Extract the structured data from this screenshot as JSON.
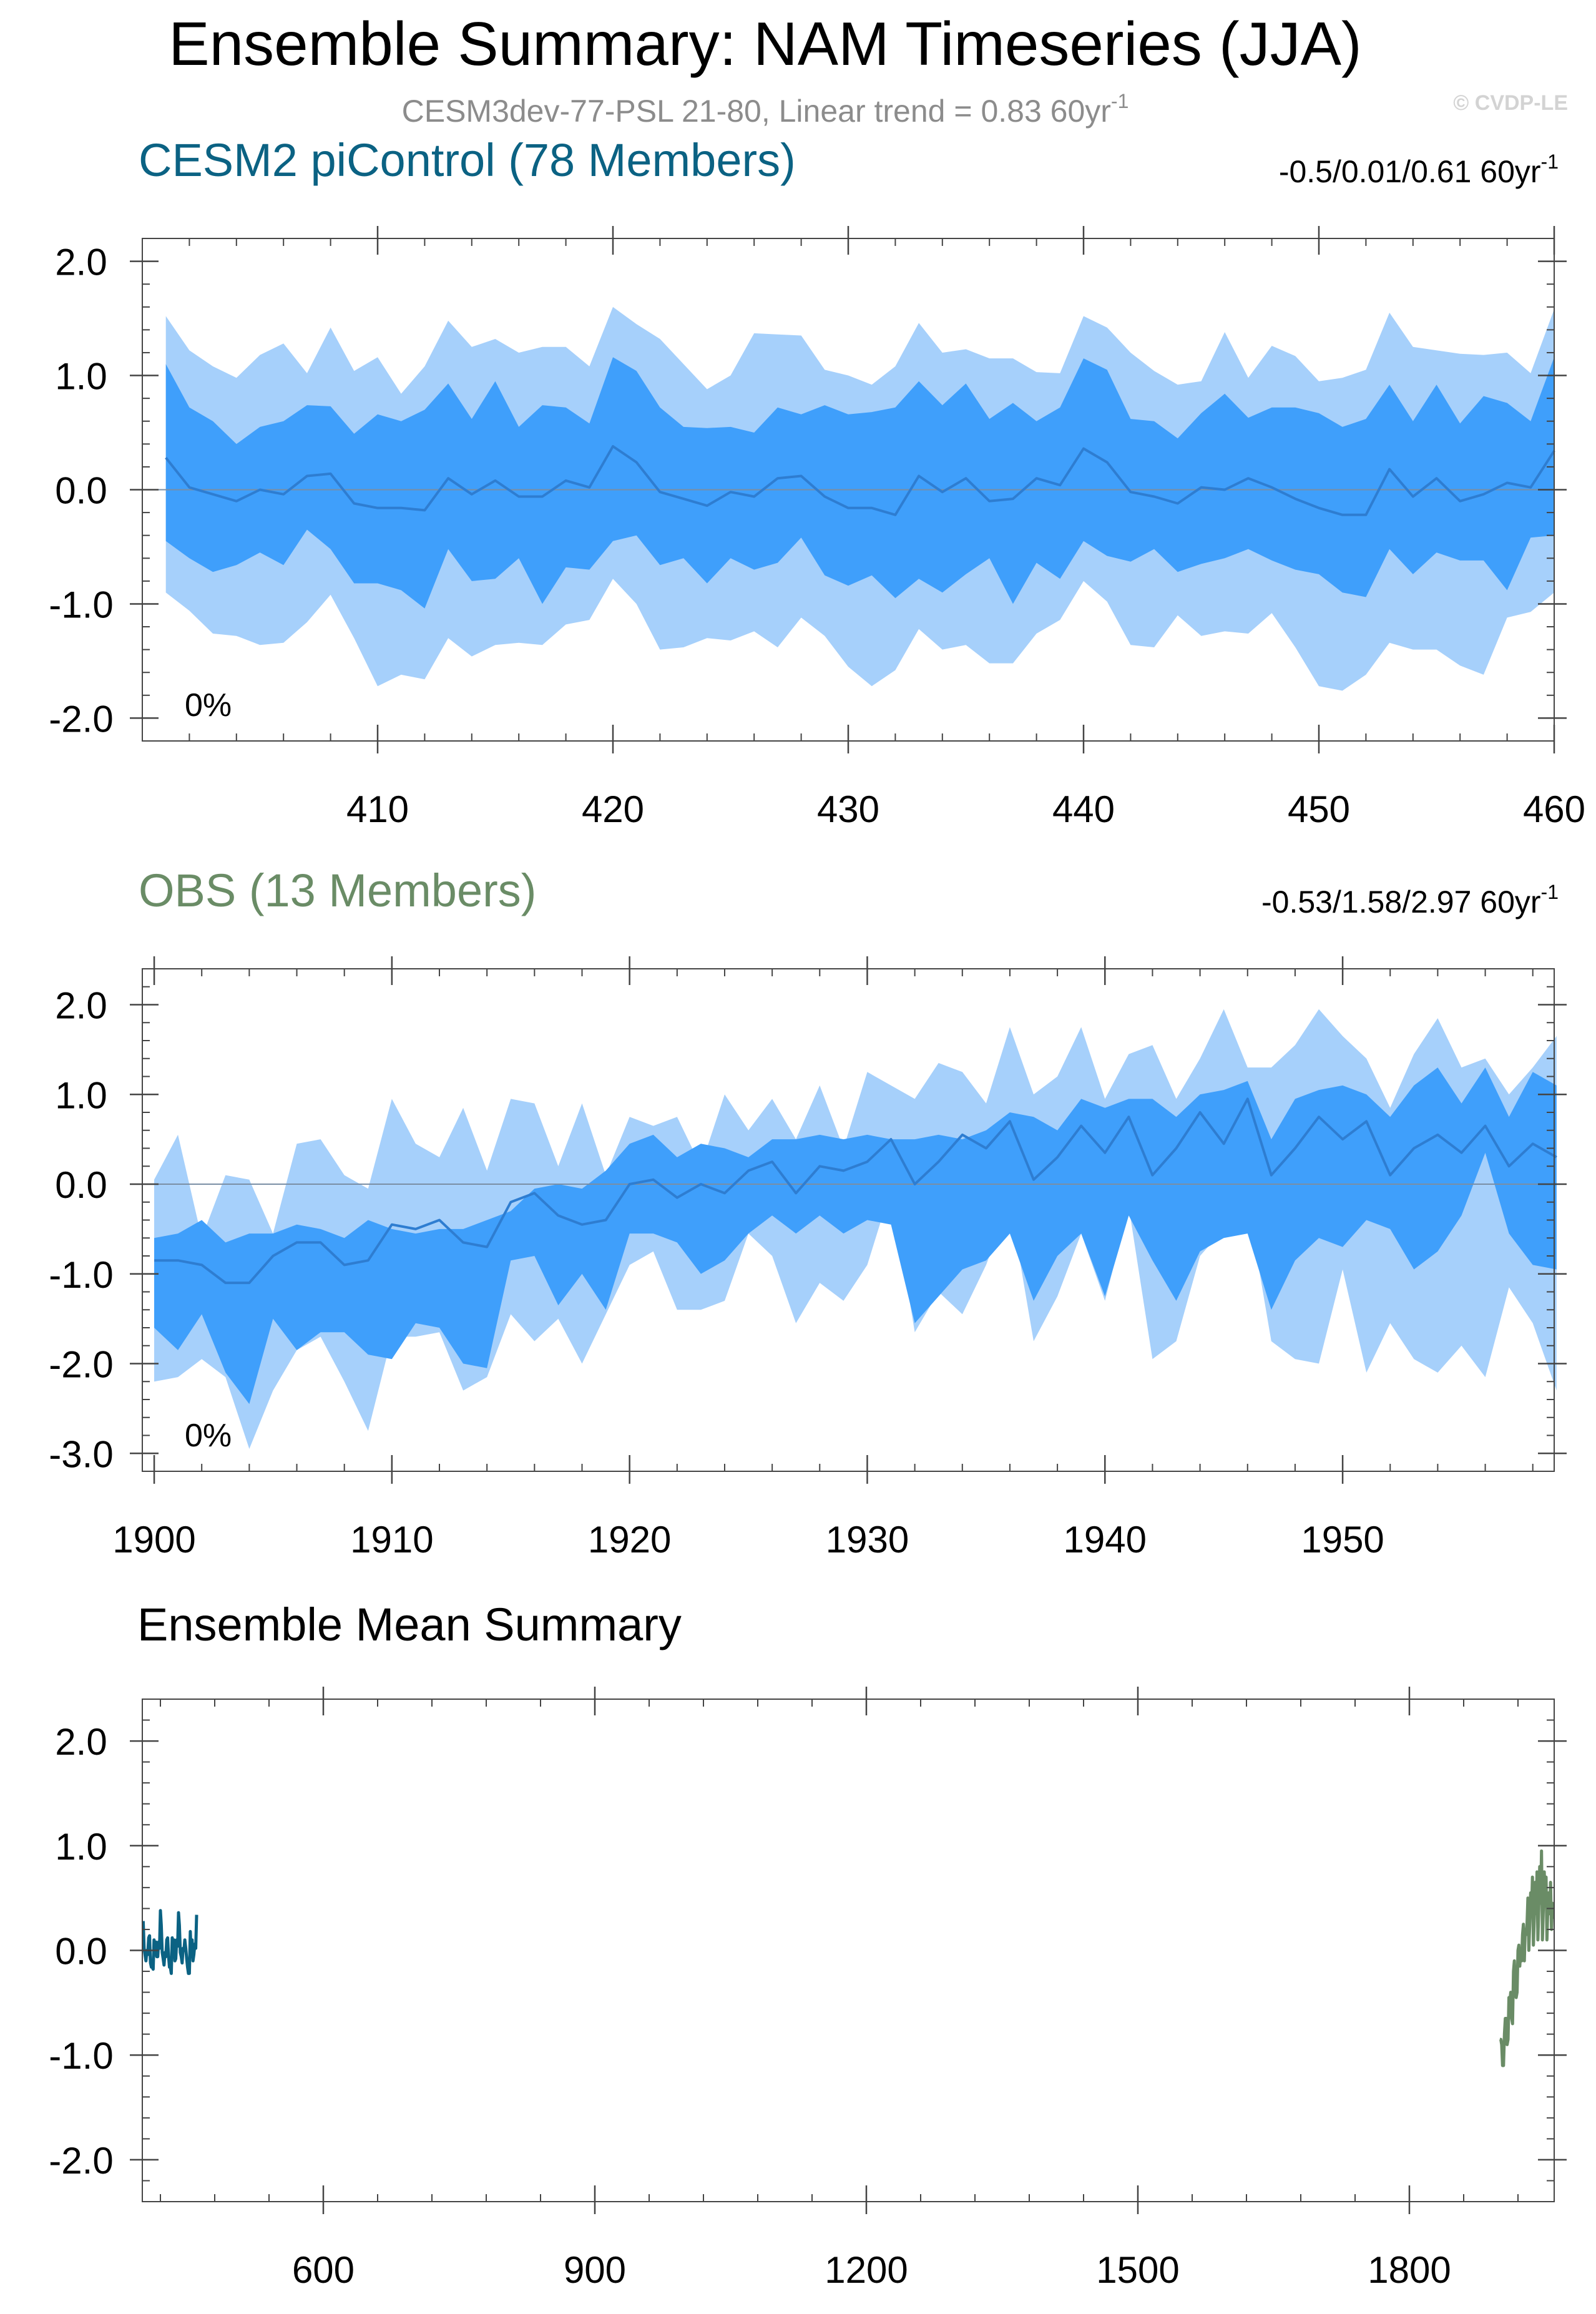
{
  "figure": {
    "title": "Ensemble Summary: NAM Timeseries (JJA)",
    "subtitle": "CESM3dev-77-PSL 21-80, Linear trend = 0.83 60yr",
    "subtitle_exp": "-1",
    "watermark": "© CVDP-LE"
  },
  "colors": {
    "outer_band": "#a6d0fb",
    "inner_band": "#3f9ffb",
    "mean_line": "#2e7dd1",
    "cesm2_label": "#0b6283",
    "obs_label": "#6a8c66",
    "cesm2_line": "#0b6283",
    "obs_line": "#6a8c66",
    "axis": "#444444",
    "zero_line": "#7a8ea4"
  },
  "chart_data": [
    {
      "type": "area",
      "panel": "CESM2 piControl",
      "title_left": "CESM2 piControl (78 Members)",
      "title_right": "-0.5/0.01/0.61 60yr",
      "title_right_exp": "-1",
      "annotation": "0%",
      "xlim": [
        400,
        460
      ],
      "ylim": [
        -2.2,
        2.2
      ],
      "x_ticks": [
        410,
        420,
        430,
        440,
        450,
        460
      ],
      "y_ticks": [
        2.0,
        1.0,
        0.0,
        -1.0,
        -2.0
      ],
      "y_tick_labels": [
        "2.0",
        "1.0",
        "0.0",
        "-1.0",
        "-2.0"
      ],
      "x": [
        401,
        402,
        403,
        404,
        405,
        406,
        407,
        408,
        409,
        410,
        411,
        412,
        413,
        414,
        415,
        416,
        417,
        418,
        419,
        420,
        421,
        422,
        423,
        424,
        425,
        426,
        427,
        428,
        429,
        430,
        431,
        432,
        433,
        434,
        435,
        436,
        437,
        438,
        439,
        440,
        441,
        442,
        443,
        444,
        445,
        446,
        447,
        448,
        449,
        450,
        451,
        452,
        453,
        454,
        455,
        456,
        457,
        458,
        459,
        460
      ],
      "series": [
        {
          "name": "max",
          "values": [
            1.52,
            1.22,
            1.08,
            0.98,
            1.18,
            1.28,
            1.02,
            1.42,
            1.04,
            1.16,
            0.84,
            1.08,
            1.48,
            1.25,
            1.32,
            1.2,
            1.25,
            1.25,
            1.08,
            1.6,
            1.45,
            1.32,
            1.1,
            0.88,
            1.0,
            1.37,
            1.36,
            1.35,
            1.05,
            1.0,
            0.92,
            1.08,
            1.46,
            1.2,
            1.23,
            1.15,
            1.15,
            1.03,
            1.02,
            1.52,
            1.42,
            1.2,
            1.04,
            0.92,
            0.95,
            1.38,
            0.98,
            1.26,
            1.17,
            0.95,
            0.98,
            1.05,
            1.55,
            1.25,
            1.22,
            1.19,
            1.18,
            1.2,
            1.02,
            1.58
          ]
        },
        {
          "name": "p90",
          "values": [
            1.1,
            0.72,
            0.6,
            0.4,
            0.55,
            0.6,
            0.74,
            0.73,
            0.49,
            0.66,
            0.6,
            0.7,
            0.93,
            0.62,
            0.95,
            0.55,
            0.74,
            0.72,
            0.58,
            1.16,
            1.04,
            0.72,
            0.55,
            0.54,
            0.55,
            0.5,
            0.72,
            0.66,
            0.74,
            0.66,
            0.68,
            0.72,
            0.95,
            0.74,
            0.93,
            0.62,
            0.76,
            0.6,
            0.72,
            1.15,
            1.05,
            0.62,
            0.6,
            0.45,
            0.67,
            0.84,
            0.63,
            0.72,
            0.72,
            0.67,
            0.55,
            0.62,
            0.92,
            0.6,
            0.92,
            0.58,
            0.82,
            0.76,
            0.6,
            1.16
          ]
        },
        {
          "name": "mean",
          "values": [
            0.28,
            0.02,
            -0.04,
            -0.1,
            0.0,
            -0.04,
            0.12,
            0.14,
            -0.12,
            -0.16,
            -0.16,
            -0.18,
            0.1,
            -0.04,
            0.08,
            -0.06,
            -0.06,
            0.08,
            0.02,
            0.38,
            0.24,
            -0.02,
            -0.08,
            -0.14,
            -0.02,
            -0.06,
            0.1,
            0.12,
            -0.06,
            -0.16,
            -0.16,
            -0.22,
            0.12,
            -0.02,
            0.1,
            -0.1,
            -0.08,
            0.1,
            0.04,
            0.36,
            0.24,
            -0.02,
            -0.06,
            -0.12,
            0.02,
            0.0,
            0.1,
            0.02,
            -0.08,
            -0.16,
            -0.22,
            -0.22,
            0.18,
            -0.06,
            0.1,
            -0.1,
            -0.04,
            0.06,
            0.02,
            0.34
          ]
        },
        {
          "name": "p10",
          "values": [
            -0.45,
            -0.6,
            -0.72,
            -0.66,
            -0.55,
            -0.66,
            -0.35,
            -0.52,
            -0.82,
            -0.82,
            -0.88,
            -1.04,
            -0.52,
            -0.8,
            -0.78,
            -0.6,
            -1.0,
            -0.68,
            -0.7,
            -0.45,
            -0.4,
            -0.66,
            -0.6,
            -0.82,
            -0.6,
            -0.7,
            -0.64,
            -0.42,
            -0.75,
            -0.84,
            -0.75,
            -0.95,
            -0.78,
            -0.9,
            -0.74,
            -0.6,
            -1.0,
            -0.64,
            -0.78,
            -0.45,
            -0.58,
            -0.63,
            -0.52,
            -0.72,
            -0.65,
            -0.6,
            -0.52,
            -0.62,
            -0.7,
            -0.74,
            -0.9,
            -0.94,
            -0.52,
            -0.74,
            -0.55,
            -0.62,
            -0.62,
            -0.88,
            -0.42,
            -0.4
          ]
        },
        {
          "name": "min",
          "values": [
            -0.9,
            -1.06,
            -1.26,
            -1.28,
            -1.36,
            -1.34,
            -1.16,
            -0.92,
            -1.3,
            -1.72,
            -1.62,
            -1.66,
            -1.3,
            -1.46,
            -1.36,
            -1.34,
            -1.36,
            -1.18,
            -1.14,
            -0.78,
            -1.0,
            -1.4,
            -1.38,
            -1.3,
            -1.32,
            -1.24,
            -1.38,
            -1.12,
            -1.28,
            -1.55,
            -1.72,
            -1.58,
            -1.22,
            -1.4,
            -1.36,
            -1.52,
            -1.52,
            -1.26,
            -1.14,
            -0.8,
            -0.98,
            -1.36,
            -1.38,
            -1.1,
            -1.28,
            -1.24,
            -1.26,
            -1.08,
            -1.38,
            -1.72,
            -1.76,
            -1.62,
            -1.34,
            -1.4,
            -1.4,
            -1.54,
            -1.62,
            -1.12,
            -1.07,
            -0.9
          ]
        }
      ]
    },
    {
      "type": "area",
      "panel": "OBS",
      "title_left": "OBS (13 Members)",
      "title_right": "-0.53/1.58/2.97 60yr",
      "title_right_exp": "-1",
      "annotation": "0%",
      "xlim": [
        1899.5,
        1958.9
      ],
      "ylim": [
        -3.2,
        2.4
      ],
      "x_ticks": [
        1900,
        1910,
        1920,
        1930,
        1940,
        1950
      ],
      "y_ticks": [
        2.0,
        1.0,
        0.0,
        -1.0,
        -2.0,
        -3.0
      ],
      "y_tick_labels": [
        "2.0",
        "1.0",
        "0.0",
        "-1.0",
        "-2.0",
        "-3.0"
      ],
      "x": [
        1900,
        1901,
        1902,
        1903,
        1904,
        1905,
        1906,
        1907,
        1908,
        1909,
        1910,
        1911,
        1912,
        1913,
        1914,
        1915,
        1916,
        1917,
        1918,
        1919,
        1920,
        1921,
        1922,
        1923,
        1924,
        1925,
        1926,
        1927,
        1928,
        1929,
        1930,
        1931,
        1932,
        1933,
        1934,
        1935,
        1936,
        1937,
        1938,
        1939,
        1940,
        1941,
        1942,
        1943,
        1944,
        1945,
        1946,
        1947,
        1948,
        1949,
        1950,
        1951,
        1952,
        1953,
        1954,
        1955,
        1956,
        1957,
        1958,
        1959
      ],
      "series": [
        {
          "name": "max",
          "values": [
            0.05,
            0.55,
            -0.6,
            0.1,
            0.05,
            -0.55,
            0.45,
            0.5,
            0.1,
            -0.05,
            0.95,
            0.45,
            0.3,
            0.85,
            0.15,
            0.95,
            0.9,
            0.2,
            0.9,
            0.1,
            0.75,
            0.65,
            0.75,
            0.2,
            1.0,
            0.6,
            0.95,
            0.5,
            1.1,
            0.4,
            1.25,
            1.1,
            0.95,
            1.35,
            1.25,
            0.9,
            1.75,
            1.0,
            1.2,
            1.75,
            0.95,
            1.45,
            1.55,
            0.95,
            1.4,
            1.95,
            1.3,
            1.3,
            1.55,
            1.95,
            1.65,
            1.4,
            0.85,
            1.45,
            1.85,
            1.3,
            1.4,
            1.0,
            1.3,
            1.65
          ]
        },
        {
          "name": "p90",
          "values": [
            -0.6,
            -0.55,
            -0.4,
            -0.65,
            -0.55,
            -0.55,
            -0.45,
            -0.5,
            -0.6,
            -0.4,
            -0.5,
            -0.55,
            -0.5,
            -0.5,
            -0.4,
            -0.3,
            -0.05,
            0.0,
            -0.05,
            0.15,
            0.45,
            0.55,
            0.3,
            0.45,
            0.4,
            0.3,
            0.5,
            0.5,
            0.55,
            0.5,
            0.55,
            0.5,
            0.5,
            0.55,
            0.5,
            0.6,
            0.8,
            0.75,
            0.6,
            0.95,
            0.85,
            0.95,
            0.95,
            0.75,
            1.0,
            1.05,
            1.15,
            0.5,
            0.95,
            1.05,
            1.1,
            1.0,
            0.75,
            1.1,
            1.3,
            0.9,
            1.3,
            0.75,
            1.25,
            1.1
          ]
        },
        {
          "name": "mean",
          "values": [
            -0.85,
            -0.85,
            -0.9,
            -1.1,
            -1.1,
            -0.8,
            -0.65,
            -0.65,
            -0.9,
            -0.85,
            -0.45,
            -0.5,
            -0.4,
            -0.65,
            -0.7,
            -0.2,
            -0.1,
            -0.35,
            -0.45,
            -0.4,
            0.0,
            0.05,
            -0.15,
            0.0,
            -0.1,
            0.15,
            0.25,
            -0.1,
            0.2,
            0.15,
            0.25,
            0.5,
            0.0,
            0.25,
            0.55,
            0.4,
            0.7,
            0.05,
            0.3,
            0.65,
            0.35,
            0.75,
            0.1,
            0.4,
            0.8,
            0.45,
            0.95,
            0.1,
            0.4,
            0.75,
            0.5,
            0.7,
            0.1,
            0.4,
            0.55,
            0.35,
            0.65,
            0.2,
            0.45,
            0.3
          ]
        },
        {
          "name": "p10",
          "values": [
            -1.6,
            -1.85,
            -1.45,
            -2.1,
            -2.45,
            -1.5,
            -1.85,
            -1.65,
            -1.65,
            -1.9,
            -1.95,
            -1.55,
            -1.6,
            -2.0,
            -2.05,
            -0.85,
            -0.8,
            -1.35,
            -1.0,
            -1.4,
            -0.55,
            -0.55,
            -0.65,
            -1.0,
            -0.85,
            -0.55,
            -0.35,
            -0.55,
            -0.35,
            -0.55,
            -0.4,
            -0.45,
            -1.55,
            -1.25,
            -0.95,
            -0.85,
            -0.55,
            -1.3,
            -0.8,
            -0.55,
            -1.25,
            -0.35,
            -0.85,
            -1.3,
            -0.75,
            -0.6,
            -0.55,
            -1.4,
            -0.85,
            -0.6,
            -0.7,
            -0.4,
            -0.5,
            -0.95,
            -0.75,
            -0.35,
            0.35,
            -0.55,
            -0.9,
            -0.95
          ]
        },
        {
          "name": "min",
          "values": [
            -2.2,
            -2.15,
            -1.95,
            -2.15,
            -2.95,
            -2.3,
            -1.85,
            -1.7,
            -2.2,
            -2.75,
            -1.7,
            -1.7,
            -1.65,
            -2.3,
            -2.15,
            -1.45,
            -1.75,
            -1.5,
            -2.0,
            -1.45,
            -0.9,
            -0.75,
            -1.4,
            -1.4,
            -1.3,
            -0.55,
            -0.8,
            -1.55,
            -1.1,
            -1.3,
            -0.9,
            -0.05,
            -1.65,
            -1.2,
            -1.45,
            -0.9,
            -0.2,
            -1.75,
            -1.25,
            -0.55,
            -1.3,
            -0.25,
            -1.95,
            -1.75,
            -0.8,
            -0.5,
            -0.2,
            -1.75,
            -1.95,
            -2.0,
            -0.95,
            -2.1,
            -1.55,
            -1.95,
            -2.1,
            -1.8,
            -2.15,
            -1.15,
            -1.55,
            -2.3
          ]
        }
      ]
    },
    {
      "type": "line",
      "panel": "Ensemble Mean Summary",
      "title_left": "Ensemble Mean Summary",
      "xlim": [
        400,
        1960
      ],
      "ylim": [
        -2.4,
        2.4
      ],
      "x_ticks": [
        600,
        900,
        1200,
        1500,
        1800
      ],
      "y_ticks": [
        2.0,
        1.0,
        0.0,
        -1.0,
        -2.0
      ],
      "y_tick_labels": [
        "2.0",
        "1.0",
        "0.0",
        "-1.0",
        "-2.0"
      ],
      "series": [
        {
          "name": "CESM2 piControl",
          "x_start": 401,
          "values": [
            0.28,
            0.02,
            -0.04,
            -0.1,
            0.0,
            -0.04,
            0.12,
            0.14,
            -0.12,
            -0.16,
            -0.16,
            -0.18,
            0.1,
            -0.04,
            0.08,
            -0.06,
            -0.06,
            0.08,
            0.02,
            0.38,
            0.24,
            -0.02,
            -0.08,
            -0.14,
            -0.02,
            -0.06,
            0.1,
            0.12,
            -0.06,
            -0.16,
            -0.16,
            -0.22,
            0.12,
            -0.02,
            0.1,
            -0.1,
            -0.08,
            0.1,
            0.04,
            0.36,
            0.24,
            -0.02,
            -0.06,
            -0.12,
            0.02,
            0.0,
            0.1,
            0.02,
            -0.08,
            -0.16,
            -0.22,
            -0.22,
            0.18,
            -0.06,
            0.1,
            -0.1,
            -0.04,
            0.06,
            0.02,
            0.34
          ]
        },
        {
          "name": "OBS",
          "x_start": 1900,
          "values": [
            -0.85,
            -0.85,
            -0.9,
            -1.1,
            -1.1,
            -0.8,
            -0.65,
            -0.65,
            -0.9,
            -0.85,
            -0.45,
            -0.5,
            -0.4,
            -0.65,
            -0.7,
            -0.2,
            -0.1,
            -0.35,
            -0.45,
            -0.4,
            0.0,
            0.05,
            -0.15,
            0.0,
            -0.1,
            0.15,
            0.25,
            -0.1,
            0.2,
            0.15,
            0.25,
            0.5,
            0.0,
            0.25,
            0.55,
            0.4,
            0.7,
            0.05,
            0.3,
            0.65,
            0.35,
            0.75,
            0.1,
            0.4,
            0.8,
            0.45,
            0.95,
            0.1,
            0.4,
            0.75,
            0.5,
            0.7,
            0.1,
            0.4,
            0.55,
            0.35,
            0.65,
            0.2,
            0.45,
            0.3
          ]
        }
      ]
    }
  ]
}
